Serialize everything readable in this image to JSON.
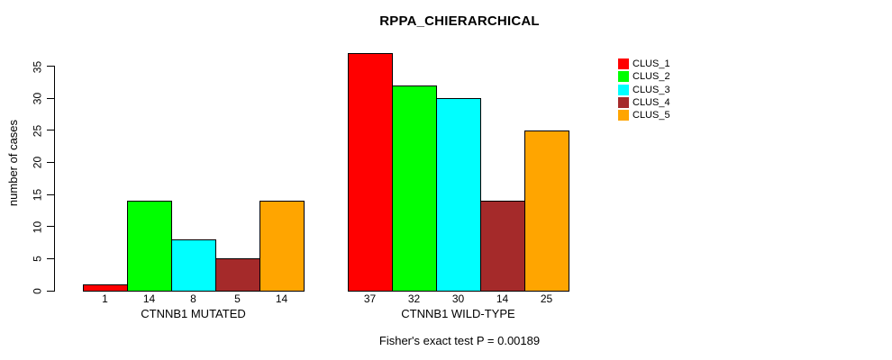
{
  "chart_data": {
    "type": "bar",
    "title": "RPPA_CHIERARCHICAL",
    "ylabel": "number of cases",
    "xlabel": "",
    "ylim": [
      0,
      35
    ],
    "yticks": [
      0,
      5,
      10,
      15,
      20,
      25,
      30,
      35
    ],
    "grid": false,
    "legend_position": "top-right-outside-plot",
    "categories": [
      "CTNNB1 MUTATED",
      "CTNNB1 WILD-TYPE"
    ],
    "groups": [
      {
        "label": "CTNNB1 MUTATED",
        "values": [
          1,
          14,
          8,
          5,
          14
        ]
      },
      {
        "label": "CTNNB1 WILD-TYPE",
        "values": [
          37,
          32,
          30,
          14,
          25
        ]
      }
    ],
    "series": [
      {
        "name": "CLUS_1",
        "color": "#ff0000",
        "values": [
          1,
          37
        ]
      },
      {
        "name": "CLUS_2",
        "color": "#00ff00",
        "values": [
          14,
          32
        ]
      },
      {
        "name": "CLUS_3",
        "color": "#00ffff",
        "values": [
          8,
          30
        ]
      },
      {
        "name": "CLUS_4",
        "color": "#a52a2a",
        "values": [
          5,
          14
        ]
      },
      {
        "name": "CLUS_5",
        "color": "#ffa500",
        "values": [
          14,
          25
        ]
      }
    ],
    "annotation": "Fisher's exact test P = 0.00189"
  }
}
